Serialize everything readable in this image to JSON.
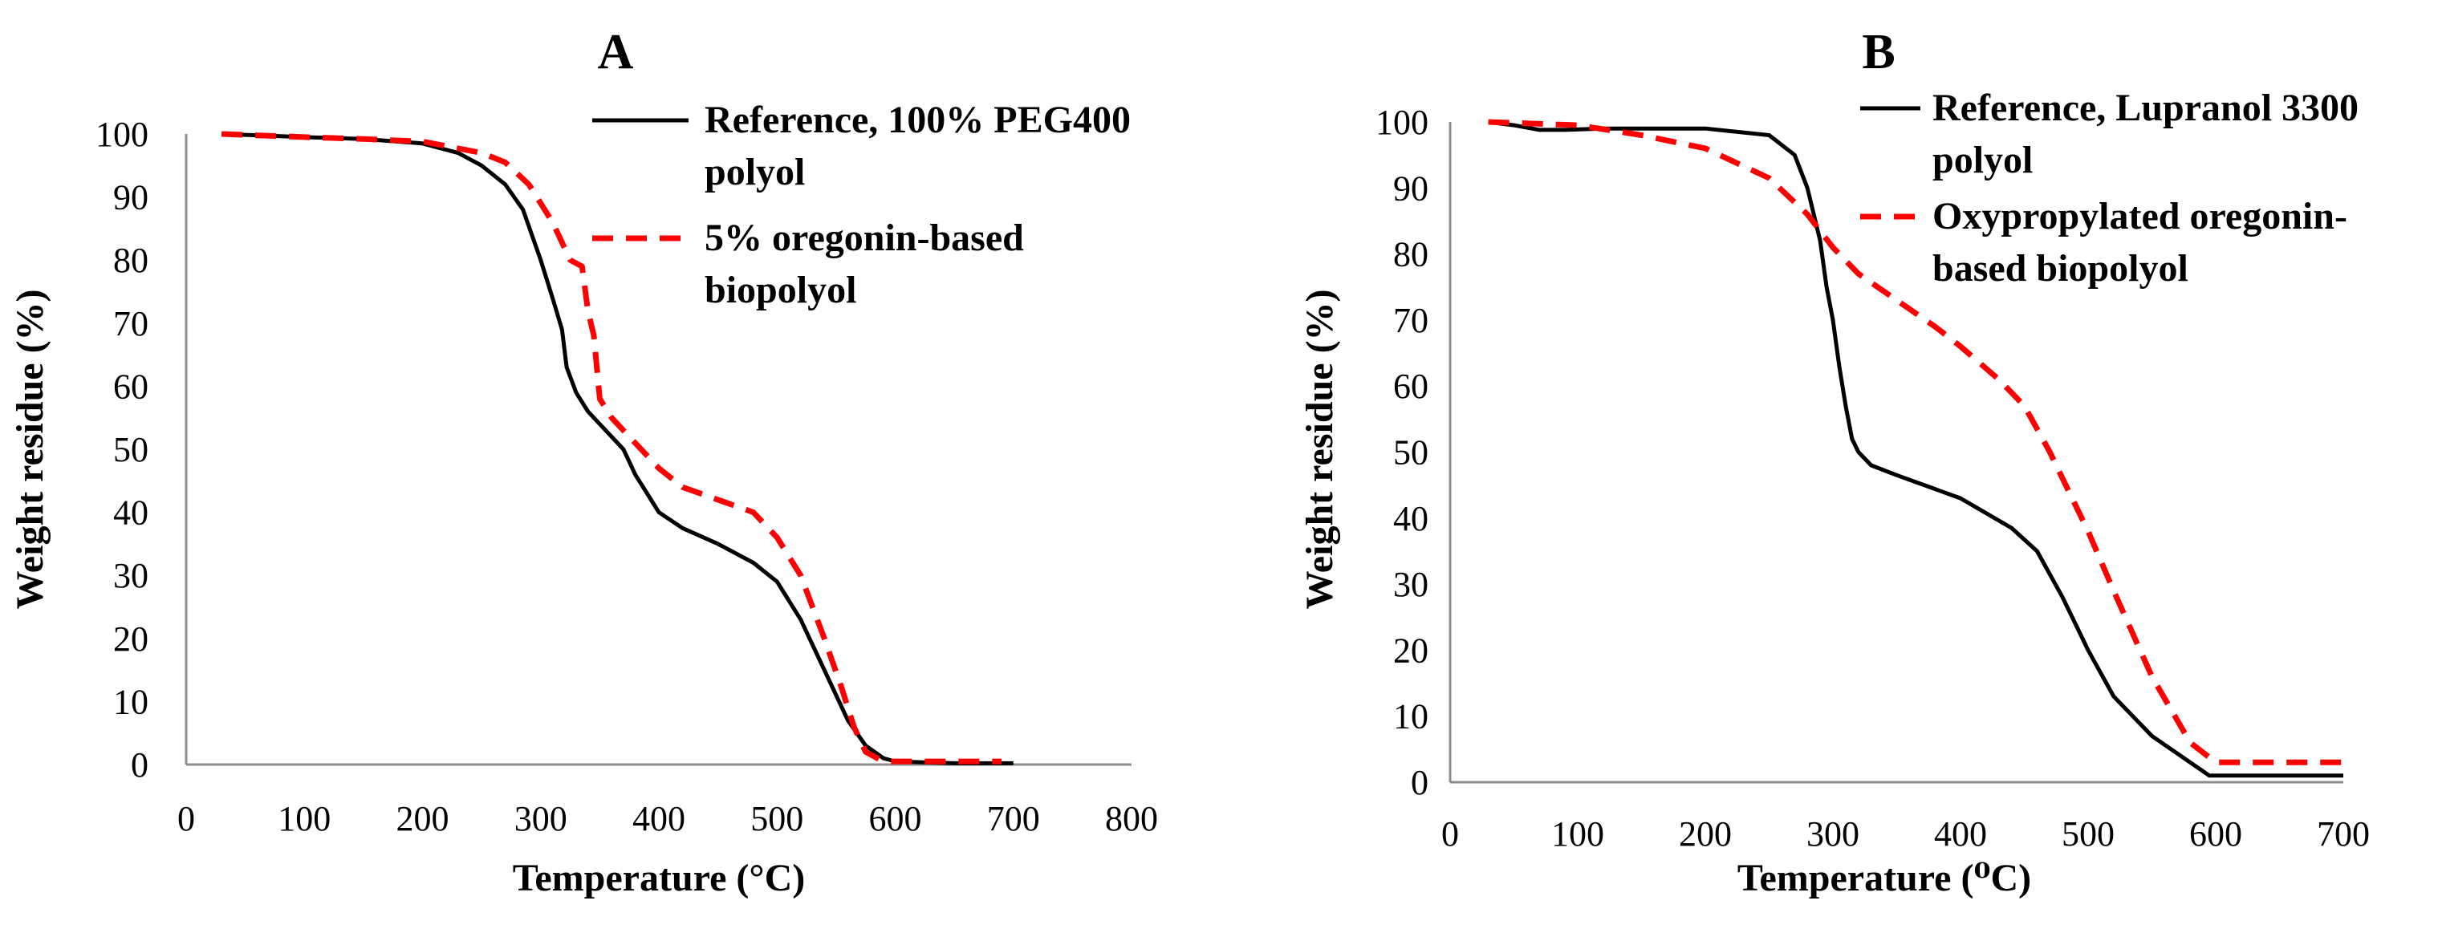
{
  "chart_data": [
    {
      "panel_label": "A",
      "type": "line",
      "title": "",
      "xlabel": "Temperature (°C)",
      "ylabel": "Weight residue (%)",
      "xlim": [
        0,
        800
      ],
      "ylim": [
        0,
        100
      ],
      "xticks": [
        0,
        100,
        200,
        300,
        400,
        500,
        600,
        700,
        800
      ],
      "yticks": [
        0,
        10,
        20,
        30,
        40,
        50,
        60,
        70,
        80,
        90,
        100
      ],
      "grid": false,
      "legend_position": "top-right",
      "series": [
        {
          "name": "Reference, 100% PEG400 polyol",
          "legend_lines": [
            "Reference, 100% PEG400",
            "polyol"
          ],
          "color": "#000000",
          "style": "solid",
          "x": [
            30,
            100,
            150,
            200,
            230,
            250,
            270,
            285,
            300,
            310,
            318,
            322,
            330,
            340,
            355,
            370,
            375,
            380,
            390,
            400,
            420,
            450,
            480,
            500,
            520,
            540,
            560,
            575,
            590,
            600,
            650,
            700
          ],
          "y": [
            100,
            99.5,
            99.2,
            98.5,
            97,
            95,
            92,
            88,
            80,
            74,
            69,
            63,
            59,
            56,
            53,
            50,
            48,
            46,
            43,
            40,
            37.5,
            35,
            32,
            29,
            23,
            15,
            7,
            3,
            1,
            0.5,
            0.2,
            0.2
          ]
        },
        {
          "name": "5% oregonin-based biopolyol",
          "legend_lines": [
            "5% oregonin-based",
            "biopolyol"
          ],
          "color": "#ff0000",
          "style": "dashed",
          "x": [
            30,
            100,
            150,
            200,
            250,
            270,
            290,
            310,
            325,
            335,
            340,
            345,
            350,
            360,
            380,
            400,
            420,
            450,
            480,
            500,
            520,
            540,
            555,
            565,
            575,
            590,
            600,
            650,
            690
          ],
          "y": [
            100,
            99.5,
            99.2,
            98.8,
            97,
            95.5,
            92,
            86,
            80,
            79,
            72,
            68,
            58,
            55,
            51,
            47,
            44,
            42,
            40,
            36,
            30,
            20,
            12,
            6,
            2,
            0.5,
            0.5,
            0.5,
            0.5
          ]
        }
      ]
    },
    {
      "panel_label": "B",
      "type": "line",
      "title": "",
      "xlabel": "Temperature (⁰C)",
      "ylabel": "Weight residue (%)",
      "xlim": [
        0,
        700
      ],
      "ylim": [
        0,
        100
      ],
      "xticks": [
        0,
        100,
        200,
        300,
        400,
        500,
        600,
        700
      ],
      "yticks": [
        0,
        10,
        20,
        30,
        40,
        50,
        60,
        70,
        80,
        90,
        100
      ],
      "grid": false,
      "legend_position": "top-right",
      "series": [
        {
          "name": "Reference, Lupranol 3300 polyol",
          "legend_lines": [
            "Reference, Lupranol 3300",
            "polyol"
          ],
          "color": "#000000",
          "style": "solid",
          "x": [
            30,
            50,
            70,
            90,
            120,
            200,
            250,
            270,
            280,
            290,
            295,
            300,
            305,
            310,
            315,
            320,
            330,
            350,
            400,
            440,
            460,
            480,
            500,
            520,
            550,
            580,
            595,
            700
          ],
          "y": [
            100,
            99.5,
            98.8,
            98.8,
            99,
            99,
            98,
            95,
            90,
            82,
            75,
            70,
            63,
            57,
            52,
            50,
            48,
            46.5,
            43,
            38.5,
            35,
            28,
            20,
            13,
            7,
            3,
            1,
            1
          ]
        },
        {
          "name": "Oxypropylated oregonin-based biopolyol",
          "legend_lines": [
            "Oxypropylated oregonin-",
            "based biopolyol"
          ],
          "color": "#ff0000",
          "style": "dashed",
          "x": [
            30,
            100,
            150,
            200,
            250,
            280,
            300,
            320,
            350,
            380,
            400,
            430,
            450,
            470,
            500,
            520,
            550,
            580,
            600,
            650,
            700
          ],
          "y": [
            100,
            99.5,
            98,
            96,
            91.5,
            86,
            81,
            77,
            73,
            69,
            66,
            61,
            57,
            50,
            38,
            29,
            16,
            6,
            3,
            3,
            3
          ]
        }
      ]
    }
  ]
}
